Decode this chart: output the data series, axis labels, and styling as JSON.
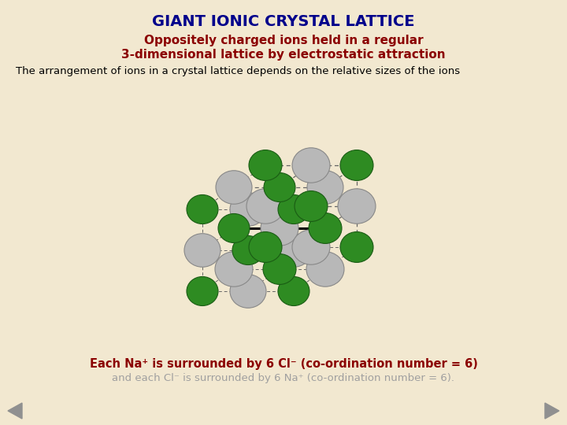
{
  "title": "GIANT IONIC CRYSTAL LATTICE",
  "title_color": "#00008B",
  "subtitle_line1": "Oppositely charged ions held in a regular",
  "subtitle_line2": "3-dimensional lattice by electrostatic attraction",
  "subtitle_color": "#8B0000",
  "line3": "The arrangement of ions in a crystal lattice depends on the relative sizes of the ions",
  "line3_color": "#000000",
  "bottom_line1": "Each Na⁺ is surrounded by 6 Cl⁻ (co-ordination number = 6)",
  "bottom_line1_color": "#8B0000",
  "bottom_line2": "and each Cl⁻ is surrounded by 6 Na⁺ (co-ordination number = 6).",
  "bottom_line2_color": "#A0A0A0",
  "bg_color": "#F2E8D0",
  "na_center_color": "#FFD700",
  "cl_color": "#2E8B22",
  "gray_color": "#B8B8B8",
  "lattice_line_color": "#666666",
  "bond_color": "#000000"
}
